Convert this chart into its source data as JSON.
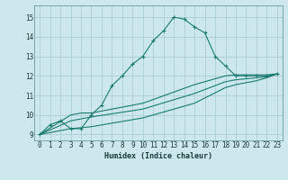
{
  "xlabel": "Humidex (Indice chaleur)",
  "bg_color": "#cce8ec",
  "grid_color": "#aacdd4",
  "line_color": "#1a7a6e",
  "xlim": [
    -0.5,
    23.5
  ],
  "ylim": [
    8.7,
    15.6
  ],
  "xticks": [
    0,
    1,
    2,
    3,
    4,
    5,
    6,
    7,
    8,
    9,
    10,
    11,
    12,
    13,
    14,
    15,
    16,
    17,
    18,
    19,
    20,
    21,
    22,
    23
  ],
  "yticks": [
    9,
    10,
    11,
    12,
    13,
    14,
    15
  ],
  "series": [
    {
      "x": [
        0,
        1,
        2,
        3,
        4,
        5,
        6,
        7,
        8,
        9,
        10,
        11,
        12,
        13,
        14,
        15,
        16,
        17,
        18,
        19,
        20,
        21,
        22,
        23
      ],
      "y": [
        9.0,
        9.5,
        9.7,
        9.3,
        9.3,
        10.0,
        10.5,
        11.5,
        12.0,
        12.6,
        13.0,
        13.8,
        14.3,
        15.0,
        14.9,
        14.5,
        14.2,
        13.0,
        12.5,
        12.0,
        12.0,
        12.0,
        12.0,
        12.1
      ],
      "marker": true
    },
    {
      "x": [
        0,
        3,
        4,
        5,
        10,
        15,
        18,
        19,
        20,
        21,
        22,
        23
      ],
      "y": [
        9.0,
        10.0,
        10.1,
        10.1,
        10.6,
        11.55,
        12.0,
        12.05,
        12.05,
        12.05,
        12.05,
        12.1
      ],
      "marker": false
    },
    {
      "x": [
        0,
        3,
        4,
        5,
        10,
        15,
        18,
        19,
        20,
        21,
        22,
        23
      ],
      "y": [
        9.0,
        9.7,
        9.8,
        9.9,
        10.3,
        11.1,
        11.7,
        11.8,
        11.85,
        11.9,
        11.95,
        12.1
      ],
      "marker": false
    },
    {
      "x": [
        0,
        3,
        4,
        5,
        10,
        15,
        18,
        19,
        20,
        21,
        22,
        23
      ],
      "y": [
        9.0,
        9.3,
        9.35,
        9.4,
        9.85,
        10.6,
        11.4,
        11.55,
        11.65,
        11.75,
        11.9,
        12.1
      ],
      "marker": false
    }
  ]
}
